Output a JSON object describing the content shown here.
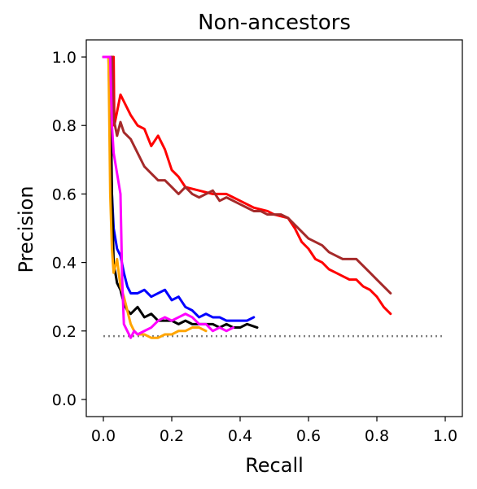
{
  "chart_data": {
    "type": "line",
    "title": "Non-ancestors",
    "xlabel": "Recall",
    "ylabel": "Precision",
    "xlim": [
      -0.05,
      1.05
    ],
    "ylim": [
      -0.05,
      1.05
    ],
    "grid": false,
    "x_ticks": [
      {
        "value": 0.0,
        "label": "0.0"
      },
      {
        "value": 0.2,
        "label": "0.2"
      },
      {
        "value": 0.4,
        "label": "0.4"
      },
      {
        "value": 0.6,
        "label": "0.6"
      },
      {
        "value": 0.8,
        "label": "0.8"
      },
      {
        "value": 1.0,
        "label": "1.0"
      }
    ],
    "y_ticks": [
      {
        "value": 0.0,
        "label": "0.0"
      },
      {
        "value": 0.2,
        "label": "0.2"
      },
      {
        "value": 0.4,
        "label": "0.4"
      },
      {
        "value": 0.6,
        "label": "0.6"
      },
      {
        "value": 0.8,
        "label": "0.8"
      },
      {
        "value": 1.0,
        "label": "1.0"
      }
    ],
    "baseline": {
      "y": 0.185,
      "x": [
        0.0,
        1.0
      ],
      "color": "#808080",
      "style": "dotted"
    },
    "series": [
      {
        "color": "#ff0000",
        "points": [
          [
            0.0,
            1.0
          ],
          [
            0.03,
            1.0
          ],
          [
            0.032,
            0.8
          ],
          [
            0.04,
            0.84
          ],
          [
            0.05,
            0.89
          ],
          [
            0.06,
            0.87
          ],
          [
            0.08,
            0.83
          ],
          [
            0.1,
            0.8
          ],
          [
            0.12,
            0.79
          ],
          [
            0.14,
            0.74
          ],
          [
            0.16,
            0.77
          ],
          [
            0.18,
            0.73
          ],
          [
            0.2,
            0.67
          ],
          [
            0.22,
            0.65
          ],
          [
            0.24,
            0.62
          ],
          [
            0.28,
            0.61
          ],
          [
            0.32,
            0.6
          ],
          [
            0.36,
            0.6
          ],
          [
            0.38,
            0.59
          ],
          [
            0.4,
            0.58
          ],
          [
            0.44,
            0.56
          ],
          [
            0.48,
            0.55
          ],
          [
            0.5,
            0.54
          ],
          [
            0.54,
            0.53
          ],
          [
            0.56,
            0.5
          ],
          [
            0.58,
            0.46
          ],
          [
            0.6,
            0.44
          ],
          [
            0.62,
            0.41
          ],
          [
            0.64,
            0.4
          ],
          [
            0.66,
            0.38
          ],
          [
            0.68,
            0.37
          ],
          [
            0.7,
            0.36
          ],
          [
            0.72,
            0.35
          ],
          [
            0.74,
            0.35
          ],
          [
            0.76,
            0.33
          ],
          [
            0.78,
            0.32
          ],
          [
            0.8,
            0.3
          ],
          [
            0.82,
            0.27
          ],
          [
            0.84,
            0.25
          ]
        ]
      },
      {
        "color": "#a52a2a",
        "points": [
          [
            0.0,
            1.0
          ],
          [
            0.025,
            1.0
          ],
          [
            0.03,
            0.82
          ],
          [
            0.04,
            0.77
          ],
          [
            0.05,
            0.81
          ],
          [
            0.06,
            0.78
          ],
          [
            0.08,
            0.76
          ],
          [
            0.1,
            0.72
          ],
          [
            0.12,
            0.68
          ],
          [
            0.14,
            0.66
          ],
          [
            0.16,
            0.64
          ],
          [
            0.18,
            0.64
          ],
          [
            0.2,
            0.62
          ],
          [
            0.22,
            0.6
          ],
          [
            0.24,
            0.62
          ],
          [
            0.26,
            0.6
          ],
          [
            0.28,
            0.59
          ],
          [
            0.3,
            0.6
          ],
          [
            0.32,
            0.61
          ],
          [
            0.34,
            0.58
          ],
          [
            0.36,
            0.59
          ],
          [
            0.38,
            0.58
          ],
          [
            0.4,
            0.57
          ],
          [
            0.42,
            0.56
          ],
          [
            0.44,
            0.55
          ],
          [
            0.46,
            0.55
          ],
          [
            0.48,
            0.54
          ],
          [
            0.5,
            0.54
          ],
          [
            0.52,
            0.54
          ],
          [
            0.54,
            0.53
          ],
          [
            0.56,
            0.51
          ],
          [
            0.58,
            0.49
          ],
          [
            0.6,
            0.47
          ],
          [
            0.62,
            0.46
          ],
          [
            0.64,
            0.45
          ],
          [
            0.66,
            0.43
          ],
          [
            0.68,
            0.42
          ],
          [
            0.7,
            0.41
          ],
          [
            0.72,
            0.41
          ],
          [
            0.74,
            0.41
          ],
          [
            0.76,
            0.39
          ],
          [
            0.78,
            0.37
          ],
          [
            0.8,
            0.35
          ],
          [
            0.82,
            0.33
          ],
          [
            0.84,
            0.31
          ]
        ]
      },
      {
        "color": "#0000ff",
        "points": [
          [
            0.0,
            1.0
          ],
          [
            0.015,
            1.0
          ],
          [
            0.02,
            0.78
          ],
          [
            0.025,
            0.6
          ],
          [
            0.03,
            0.5
          ],
          [
            0.04,
            0.44
          ],
          [
            0.05,
            0.42
          ],
          [
            0.06,
            0.37
          ],
          [
            0.07,
            0.33
          ],
          [
            0.08,
            0.31
          ],
          [
            0.1,
            0.31
          ],
          [
            0.12,
            0.32
          ],
          [
            0.14,
            0.3
          ],
          [
            0.16,
            0.31
          ],
          [
            0.18,
            0.32
          ],
          [
            0.2,
            0.29
          ],
          [
            0.22,
            0.3
          ],
          [
            0.24,
            0.27
          ],
          [
            0.26,
            0.26
          ],
          [
            0.28,
            0.24
          ],
          [
            0.3,
            0.25
          ],
          [
            0.32,
            0.24
          ],
          [
            0.34,
            0.24
          ],
          [
            0.36,
            0.23
          ],
          [
            0.38,
            0.23
          ],
          [
            0.4,
            0.23
          ],
          [
            0.42,
            0.23
          ],
          [
            0.44,
            0.24
          ]
        ]
      },
      {
        "color": "#000000",
        "points": [
          [
            0.0,
            1.0
          ],
          [
            0.02,
            1.0
          ],
          [
            0.025,
            0.6
          ],
          [
            0.03,
            0.4
          ],
          [
            0.04,
            0.34
          ],
          [
            0.05,
            0.32
          ],
          [
            0.06,
            0.28
          ],
          [
            0.07,
            0.26
          ],
          [
            0.08,
            0.25
          ],
          [
            0.1,
            0.27
          ],
          [
            0.12,
            0.24
          ],
          [
            0.14,
            0.25
          ],
          [
            0.16,
            0.23
          ],
          [
            0.18,
            0.23
          ],
          [
            0.2,
            0.23
          ],
          [
            0.22,
            0.22
          ],
          [
            0.24,
            0.23
          ],
          [
            0.26,
            0.22
          ],
          [
            0.28,
            0.22
          ],
          [
            0.3,
            0.22
          ],
          [
            0.32,
            0.22
          ],
          [
            0.34,
            0.21
          ],
          [
            0.36,
            0.22
          ],
          [
            0.38,
            0.21
          ],
          [
            0.4,
            0.21
          ],
          [
            0.42,
            0.22
          ],
          [
            0.45,
            0.21
          ]
        ]
      },
      {
        "color": "#ffa500",
        "points": [
          [
            0.0,
            1.0
          ],
          [
            0.015,
            1.0
          ],
          [
            0.02,
            0.6
          ],
          [
            0.025,
            0.44
          ],
          [
            0.03,
            0.37
          ],
          [
            0.04,
            0.41
          ],
          [
            0.05,
            0.33
          ],
          [
            0.06,
            0.3
          ],
          [
            0.07,
            0.26
          ],
          [
            0.08,
            0.22
          ],
          [
            0.09,
            0.2
          ],
          [
            0.1,
            0.19
          ],
          [
            0.12,
            0.19
          ],
          [
            0.14,
            0.18
          ],
          [
            0.16,
            0.18
          ],
          [
            0.18,
            0.19
          ],
          [
            0.2,
            0.19
          ],
          [
            0.22,
            0.2
          ],
          [
            0.24,
            0.2
          ],
          [
            0.26,
            0.21
          ],
          [
            0.28,
            0.21
          ],
          [
            0.3,
            0.2
          ]
        ]
      },
      {
        "color": "#ff00ff",
        "points": [
          [
            0.0,
            1.0
          ],
          [
            0.02,
            1.0
          ],
          [
            0.025,
            0.8
          ],
          [
            0.03,
            0.72
          ],
          [
            0.04,
            0.66
          ],
          [
            0.05,
            0.6
          ],
          [
            0.055,
            0.35
          ],
          [
            0.06,
            0.22
          ],
          [
            0.07,
            0.2
          ],
          [
            0.08,
            0.18
          ],
          [
            0.09,
            0.2
          ],
          [
            0.1,
            0.19
          ],
          [
            0.12,
            0.2
          ],
          [
            0.14,
            0.21
          ],
          [
            0.16,
            0.23
          ],
          [
            0.18,
            0.24
          ],
          [
            0.2,
            0.23
          ],
          [
            0.22,
            0.24
          ],
          [
            0.24,
            0.25
          ],
          [
            0.26,
            0.24
          ],
          [
            0.28,
            0.22
          ],
          [
            0.3,
            0.22
          ],
          [
            0.32,
            0.2
          ],
          [
            0.34,
            0.21
          ],
          [
            0.36,
            0.2
          ],
          [
            0.38,
            0.21
          ]
        ]
      }
    ]
  }
}
